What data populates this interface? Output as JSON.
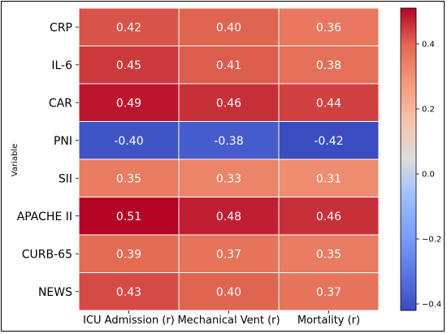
{
  "chart_data": {
    "type": "heatmap",
    "title": "",
    "xlabel": "",
    "ylabel": "Variable",
    "columns": [
      "ICU Admission (r)",
      "Mechanical Vent (r)",
      "Mortality (r)"
    ],
    "rows": [
      "CRP",
      "IL-6",
      "CAR",
      "PNI",
      "SII",
      "APACHE II",
      "CURB-65",
      "NEWS"
    ],
    "values": [
      [
        0.42,
        0.4,
        0.36
      ],
      [
        0.45,
        0.41,
        0.38
      ],
      [
        0.49,
        0.46,
        0.44
      ],
      [
        -0.4,
        -0.38,
        -0.42
      ],
      [
        0.35,
        0.33,
        0.31
      ],
      [
        0.51,
        0.48,
        0.46
      ],
      [
        0.39,
        0.37,
        0.35
      ],
      [
        0.43,
        0.4,
        0.37
      ]
    ],
    "labels": [
      [
        "0.42",
        "0.40",
        "0.36"
      ],
      [
        "0.45",
        "0.41",
        "0.38"
      ],
      [
        "0.49",
        "0.46",
        "0.44"
      ],
      [
        "-0.40",
        "-0.38",
        "-0.42"
      ],
      [
        "0.35",
        "0.33",
        "0.31"
      ],
      [
        "0.51",
        "0.48",
        "0.46"
      ],
      [
        "0.39",
        "0.37",
        "0.35"
      ],
      [
        "0.43",
        "0.40",
        "0.37"
      ]
    ],
    "colormap": "coolwarm",
    "colorbar": {
      "range": [
        -0.42,
        0.51
      ],
      "ticks": [
        -0.4,
        -0.2,
        0.0,
        0.2,
        0.4
      ],
      "tick_labels": [
        "−0.4",
        "−0.2",
        "0.0",
        "0.2",
        "0.4"
      ]
    },
    "cell_border_color": "#ffffff",
    "annotation_color": "#ffffff"
  }
}
